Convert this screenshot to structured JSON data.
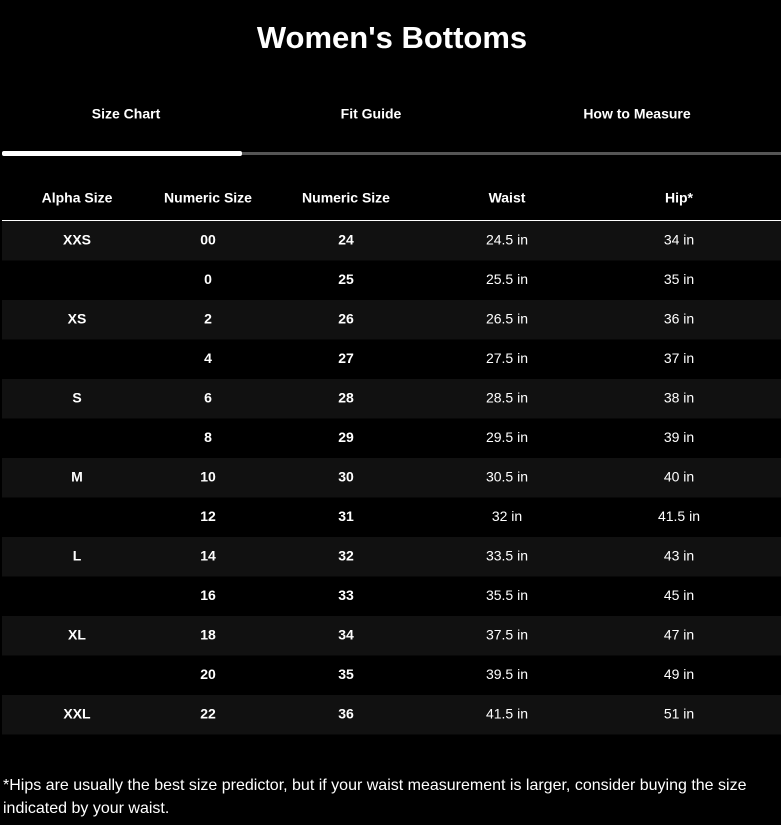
{
  "header": {
    "title": "Women's Bottoms"
  },
  "tabs": [
    "Size Chart",
    "Fit Guide",
    "How to Measure"
  ],
  "table": {
    "columns": [
      "Alpha Size",
      "Numeric Size",
      "Numeric Size",
      "Waist",
      "Hip*"
    ],
    "rows": [
      [
        "XXS",
        "00",
        "24",
        "24.5 in",
        "34 in"
      ],
      [
        null,
        "0",
        "25",
        "25.5 in",
        "35 in"
      ],
      [
        "XS",
        "2",
        "26",
        "26.5 in",
        "36 in"
      ],
      [
        null,
        "4",
        "27",
        "27.5 in",
        "37 in"
      ],
      [
        "S",
        "6",
        "28",
        "28.5 in",
        "38 in"
      ],
      [
        null,
        "8",
        "29",
        "29.5 in",
        "39 in"
      ],
      [
        "M",
        "10",
        "30",
        "30.5 in",
        "40 in"
      ],
      [
        null,
        "12",
        "31",
        "32 in",
        "41.5 in"
      ],
      [
        "L",
        "14",
        "32",
        "33.5 in",
        "43 in"
      ],
      [
        null,
        "16",
        "33",
        "35.5 in",
        "45 in"
      ],
      [
        "XL",
        "18",
        "34",
        "37.5 in",
        "47 in"
      ],
      [
        null,
        "20",
        "35",
        "39.5 in",
        "49 in"
      ],
      [
        "XXL",
        "22",
        "36",
        "41.5 in",
        "51 in"
      ]
    ]
  },
  "footnote": "*Hips are usually the best size predictor, but if your waist measurement is larger, consider buying the size indicated by your waist."
}
